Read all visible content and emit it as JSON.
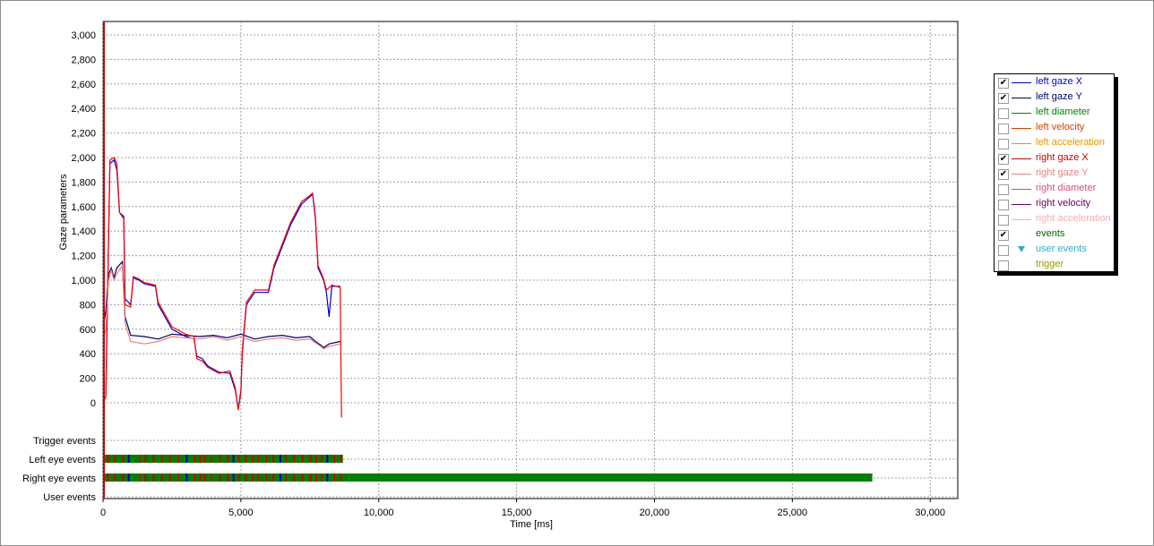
{
  "chart_data": {
    "type": "line",
    "xlabel": "Time [ms]",
    "ylabel": "Gaze parameters",
    "xlim": [
      0,
      31000
    ],
    "ylim": [
      0,
      3000
    ],
    "x_ticks": [
      0,
      5000,
      10000,
      15000,
      20000,
      25000,
      30000
    ],
    "x_tick_labels": [
      "0",
      "5,000",
      "10,000",
      "15,000",
      "20,000",
      "25,000",
      "30,000"
    ],
    "y_ticks": [
      0,
      200,
      400,
      600,
      800,
      1000,
      1200,
      1400,
      1600,
      1800,
      2000,
      2200,
      2400,
      2600,
      2800,
      3000
    ],
    "y_tick_labels": [
      "0",
      "200",
      "400",
      "600",
      "800",
      "1,000",
      "1,200",
      "1,400",
      "1,600",
      "1,800",
      "2,000",
      "2,200",
      "2,400",
      "2,600",
      "2,800",
      "3,000"
    ],
    "grid": true,
    "legend_position": "right",
    "series": [
      {
        "name": "left gaze X",
        "color": "#0000cc",
        "points": [
          [
            0,
            0
          ],
          [
            100,
            50
          ],
          [
            150,
            700
          ],
          [
            250,
            1950
          ],
          [
            400,
            1980
          ],
          [
            500,
            1900
          ],
          [
            600,
            1550
          ],
          [
            750,
            1520
          ],
          [
            800,
            850
          ],
          [
            1000,
            800
          ],
          [
            1100,
            1020
          ],
          [
            1300,
            1000
          ],
          [
            1500,
            970
          ],
          [
            1900,
            950
          ],
          [
            2000,
            800
          ],
          [
            2500,
            600
          ],
          [
            3000,
            540
          ],
          [
            3300,
            520
          ],
          [
            3400,
            380
          ],
          [
            3600,
            360
          ],
          [
            3800,
            300
          ],
          [
            4200,
            250
          ],
          [
            4600,
            240
          ],
          [
            4800,
            100
          ],
          [
            4900,
            -50
          ],
          [
            5000,
            100
          ],
          [
            5050,
            400
          ],
          [
            5200,
            800
          ],
          [
            5500,
            900
          ],
          [
            6000,
            900
          ],
          [
            6200,
            1100
          ],
          [
            6800,
            1450
          ],
          [
            7200,
            1620
          ],
          [
            7500,
            1680
          ],
          [
            7600,
            1700
          ],
          [
            7700,
            1500
          ],
          [
            7800,
            1100
          ],
          [
            8000,
            1000
          ],
          [
            8100,
            900
          ],
          [
            8200,
            700
          ],
          [
            8300,
            950
          ],
          [
            8600,
            950
          ]
        ]
      },
      {
        "name": "left gaze Y",
        "color": "#000066",
        "points": [
          [
            0,
            600
          ],
          [
            100,
            750
          ],
          [
            200,
            1050
          ],
          [
            300,
            1100
          ],
          [
            400,
            1020
          ],
          [
            500,
            1100
          ],
          [
            700,
            1150
          ],
          [
            800,
            700
          ],
          [
            1000,
            550
          ],
          [
            1500,
            540
          ],
          [
            2000,
            520
          ],
          [
            2500,
            560
          ],
          [
            3000,
            550
          ],
          [
            3500,
            540
          ],
          [
            4000,
            550
          ],
          [
            4500,
            530
          ],
          [
            5000,
            560
          ],
          [
            5500,
            520
          ],
          [
            6000,
            540
          ],
          [
            6500,
            550
          ],
          [
            7000,
            530
          ],
          [
            7500,
            540
          ],
          [
            7700,
            500
          ],
          [
            7900,
            470
          ],
          [
            8000,
            450
          ],
          [
            8200,
            480
          ],
          [
            8600,
            500
          ]
        ]
      },
      {
        "name": "right gaze X",
        "color": "#ff0000",
        "points": [
          [
            0,
            0
          ],
          [
            100,
            50
          ],
          [
            150,
            700
          ],
          [
            250,
            1980
          ],
          [
            400,
            2000
          ],
          [
            500,
            1950
          ],
          [
            600,
            1550
          ],
          [
            750,
            1500
          ],
          [
            800,
            800
          ],
          [
            1000,
            780
          ],
          [
            1100,
            1030
          ],
          [
            1300,
            1010
          ],
          [
            1500,
            980
          ],
          [
            1900,
            960
          ],
          [
            2000,
            820
          ],
          [
            2500,
            620
          ],
          [
            3000,
            560
          ],
          [
            3300,
            540
          ],
          [
            3400,
            360
          ],
          [
            3600,
            340
          ],
          [
            3800,
            290
          ],
          [
            4200,
            240
          ],
          [
            4600,
            260
          ],
          [
            4800,
            120
          ],
          [
            4900,
            -60
          ],
          [
            5000,
            80
          ],
          [
            5050,
            420
          ],
          [
            5200,
            820
          ],
          [
            5500,
            920
          ],
          [
            6000,
            920
          ],
          [
            6200,
            1120
          ],
          [
            6800,
            1470
          ],
          [
            7200,
            1640
          ],
          [
            7500,
            1690
          ],
          [
            7600,
            1710
          ],
          [
            7700,
            1520
          ],
          [
            7800,
            1120
          ],
          [
            8000,
            1010
          ],
          [
            8100,
            920
          ],
          [
            8300,
            960
          ],
          [
            8600,
            940
          ],
          [
            8650,
            -120
          ]
        ]
      },
      {
        "name": "right gaze Y",
        "color": "#e88080",
        "points": [
          [
            0,
            500
          ],
          [
            100,
            600
          ],
          [
            200,
            1000
          ],
          [
            300,
            1080
          ],
          [
            400,
            1000
          ],
          [
            500,
            1050
          ],
          [
            700,
            1120
          ],
          [
            800,
            650
          ],
          [
            1000,
            500
          ],
          [
            1500,
            480
          ],
          [
            2000,
            500
          ],
          [
            2500,
            540
          ],
          [
            3000,
            530
          ],
          [
            3500,
            520
          ],
          [
            4000,
            540
          ],
          [
            4500,
            510
          ],
          [
            5000,
            540
          ],
          [
            5500,
            500
          ],
          [
            6000,
            520
          ],
          [
            6500,
            530
          ],
          [
            7000,
            510
          ],
          [
            7500,
            520
          ],
          [
            7700,
            490
          ],
          [
            7900,
            460
          ],
          [
            8000,
            440
          ],
          [
            8200,
            460
          ],
          [
            8600,
            480
          ]
        ]
      }
    ],
    "event_rows": [
      "Trigger events",
      "Left eye events",
      "Right eye events",
      "User events"
    ],
    "events": {
      "left_eye_end": 8700,
      "right_eye_end": 27900,
      "colors": {
        "fixation": "#008000",
        "saccade": "#cc0000",
        "blink": "#0000cc"
      }
    }
  },
  "legend": [
    {
      "label": "left gaze X",
      "color": "#0000cc",
      "checked": true,
      "check": "✔"
    },
    {
      "label": "left gaze Y",
      "color": "#000066",
      "checked": true,
      "check": "✔"
    },
    {
      "label": "left diameter",
      "color": "#008000",
      "checked": false,
      "check": ""
    },
    {
      "label": "left velocity",
      "color": "#cc4400",
      "checked": false,
      "check": ""
    },
    {
      "label": "left acceleration",
      "color": "#e69500",
      "checked": false,
      "check": ""
    },
    {
      "label": "right gaze X",
      "color": "#cc0000",
      "checked": true,
      "check": "✔"
    },
    {
      "label": "right gaze Y",
      "color": "#e88080",
      "checked": true,
      "check": "✔"
    },
    {
      "label": "right diameter",
      "color": "#d05080",
      "checked": false,
      "check": ""
    },
    {
      "label": "right velocity",
      "color": "#660066",
      "checked": false,
      "check": ""
    },
    {
      "label": "right acceleration",
      "color": "#f0b0b0",
      "checked": false,
      "check": ""
    },
    {
      "label": "events",
      "color": "#006600",
      "checked": true,
      "check": "✔"
    },
    {
      "label": "user events",
      "color": "#33aacc",
      "checked": false,
      "check": ""
    },
    {
      "label": "trigger",
      "color": "#999900",
      "checked": false,
      "check": ""
    }
  ]
}
